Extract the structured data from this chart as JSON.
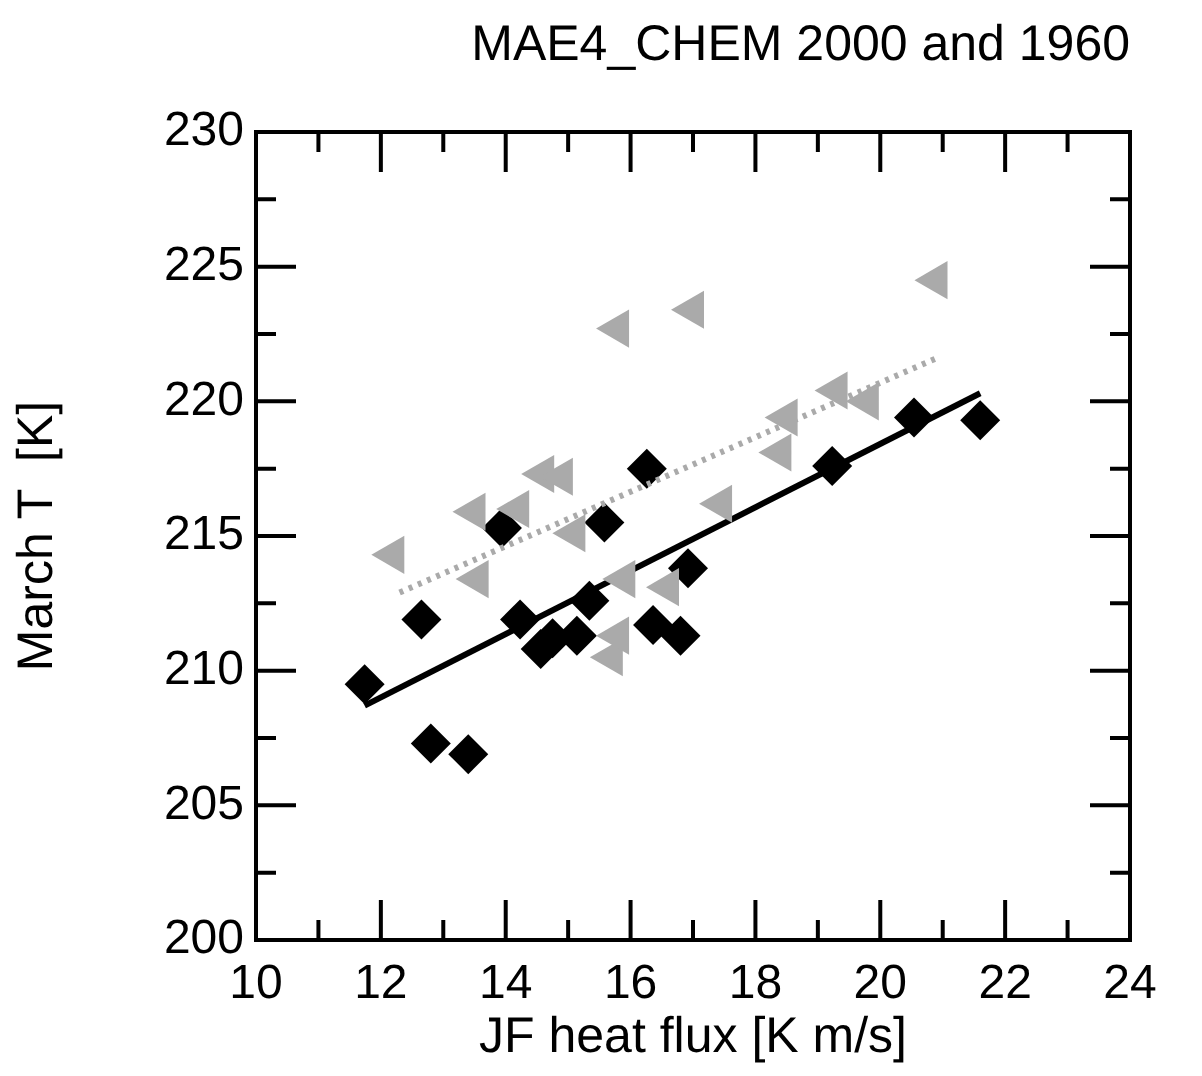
{
  "chart_data": {
    "type": "scatter",
    "title": "MAE4_CHEM 2000 and 1960",
    "xlabel": "JF heat flux [K m/s]",
    "ylabel": "March T  [K]",
    "xlim": [
      10,
      24
    ],
    "ylim": [
      200,
      230
    ],
    "xticks": [
      10,
      {
        "value": 11,
        "label": null
      },
      12,
      {
        "value": 13,
        "label": null
      },
      14,
      {
        "value": 15,
        "label": null
      },
      16,
      {
        "value": 17,
        "label": null
      },
      18,
      {
        "value": 19,
        "label": null
      },
      20,
      {
        "value": 21,
        "label": null
      },
      22,
      {
        "value": 23,
        "label": null
      },
      24
    ],
    "yticks": [
      200,
      {
        "value": 202.5,
        "label": null
      },
      205,
      {
        "value": 207.5,
        "label": null
      },
      210,
      {
        "value": 212.5,
        "label": null
      },
      215,
      {
        "value": 217.5,
        "label": null
      },
      220,
      {
        "value": 222.5,
        "label": null
      },
      225,
      {
        "value": 227.5,
        "label": null
      },
      230
    ],
    "grid": false,
    "legend": false,
    "series": [
      {
        "type": "scatter",
        "marker": "triangle",
        "color": "#aaaaaa",
        "x": [
          12.2,
          13.5,
          13.55,
          14.2,
          14.6,
          14.9,
          15.1,
          15.7,
          15.8,
          15.9,
          15.8,
          17.0,
          16.6,
          17.45,
          18.4,
          18.5,
          19.3,
          19.8,
          20.9
        ],
        "values": [
          214.3,
          215.9,
          213.4,
          216.0,
          217.3,
          217.2,
          215.1,
          210.5,
          211.3,
          213.4,
          222.7,
          223.4,
          213.1,
          216.2,
          218.1,
          219.4,
          220.4,
          220.0,
          224.5
        ]
      },
      {
        "type": "line",
        "line_style": "dotted",
        "marker": "none",
        "color": "#aaaaaa",
        "x": [
          12.3,
          20.9
        ],
        "values": [
          212.9,
          221.6
        ]
      },
      {
        "type": "scatter",
        "marker": "diamond",
        "color": "#000000",
        "x": [
          11.74,
          12.65,
          12.8,
          13.4,
          13.94,
          14.23,
          14.56,
          14.75,
          15.14,
          15.34,
          15.58,
          16.26,
          16.36,
          16.8,
          16.92,
          19.23,
          20.54,
          21.6
        ],
        "values": [
          209.5,
          211.9,
          207.3,
          206.9,
          215.3,
          211.9,
          210.8,
          211.2,
          211.3,
          212.6,
          215.5,
          217.5,
          211.7,
          211.3,
          213.8,
          217.6,
          219.4,
          219.3
        ]
      },
      {
        "type": "line",
        "line_style": "solid",
        "marker": "none",
        "color": "#000000",
        "x": [
          11.74,
          21.6
        ],
        "values": [
          208.7,
          220.3
        ]
      }
    ]
  }
}
